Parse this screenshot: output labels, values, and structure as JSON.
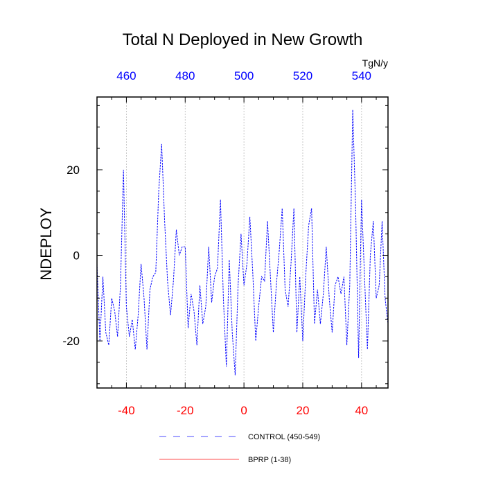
{
  "chart_data": {
    "type": "line",
    "title": "Total N Deployed in New Growth",
    "ylabel": "NDEPLOY",
    "units": "TgN/y",
    "xlim": [
      -50,
      49
    ],
    "ylim": [
      -31,
      37
    ],
    "bottom_axis": {
      "color": "#ff0000",
      "ticks": [
        -40,
        -20,
        0,
        20,
        40
      ],
      "tick_labels": [
        "-40",
        "-20",
        "0",
        "20",
        "40"
      ]
    },
    "top_axis": {
      "color": "#0000ff",
      "ticks": [
        460,
        480,
        500,
        520,
        540
      ],
      "tick_labels": [
        "460",
        "480",
        "500",
        "520",
        "540"
      ],
      "offset_from_bottom": 500
    },
    "left_axis": {
      "ticks": [
        -20,
        0,
        20
      ],
      "tick_labels": [
        "-20",
        "0",
        "20"
      ]
    },
    "vertical_gridlines": [
      -40,
      -20,
      0,
      20,
      40
    ],
    "series": [
      {
        "name": "CONTROL (450-549)",
        "color": "#0000ff",
        "style": "dashed",
        "x": [
          -50,
          -49,
          -48,
          -47,
          -46,
          -45,
          -44,
          -43,
          -42,
          -41,
          -40,
          -39,
          -38,
          -37,
          -36,
          -35,
          -34,
          -33,
          -32,
          -31,
          -30,
          -29,
          -28,
          -27,
          -26,
          -25,
          -24,
          -23,
          -22,
          -21,
          -20,
          -19,
          -18,
          -17,
          -16,
          -15,
          -14,
          -13,
          -12,
          -11,
          -10,
          -9,
          -8,
          -7,
          -6,
          -5,
          -4,
          -3,
          -2,
          -1,
          0,
          1,
          2,
          3,
          4,
          5,
          6,
          7,
          8,
          9,
          10,
          11,
          12,
          13,
          14,
          15,
          16,
          17,
          18,
          19,
          20,
          21,
          22,
          23,
          24,
          25,
          26,
          27,
          28,
          29,
          30,
          31,
          32,
          33,
          34,
          35,
          36,
          37,
          38,
          39,
          40,
          41,
          42,
          43,
          44,
          45,
          46,
          47,
          48,
          49
        ],
        "values": [
          -2,
          -20,
          -5,
          -18,
          -21,
          -10,
          -13,
          -19,
          -7,
          20,
          -12,
          -19,
          -15,
          -22,
          -14,
          -2,
          -10,
          -22,
          -8,
          -5,
          -4,
          15,
          26,
          8,
          -6,
          -14,
          -6,
          6,
          0,
          2,
          2,
          -17,
          -9,
          -13,
          -21,
          -7,
          -16,
          -12,
          2,
          -11,
          -5,
          -3,
          13,
          -10,
          -26,
          -1,
          -18,
          -28,
          -7,
          5,
          -7,
          -2,
          9,
          -4,
          -20,
          -12,
          -5,
          -6,
          8,
          -5,
          -18,
          -7,
          1,
          11,
          -8,
          -12,
          -2,
          11,
          -18,
          -5,
          -20,
          -5,
          7,
          11,
          -16,
          -8,
          -16,
          -9,
          2,
          -10,
          -18,
          -7,
          -5,
          -9,
          -5,
          -21,
          -7,
          34,
          11,
          -24,
          13,
          -5,
          -22,
          0,
          8,
          -10,
          -7,
          8,
          -10,
          -16
        ]
      },
      {
        "name": "BPRP (1-38)",
        "color": "#ff0000",
        "style": "solid",
        "x": [],
        "values": []
      }
    ]
  }
}
